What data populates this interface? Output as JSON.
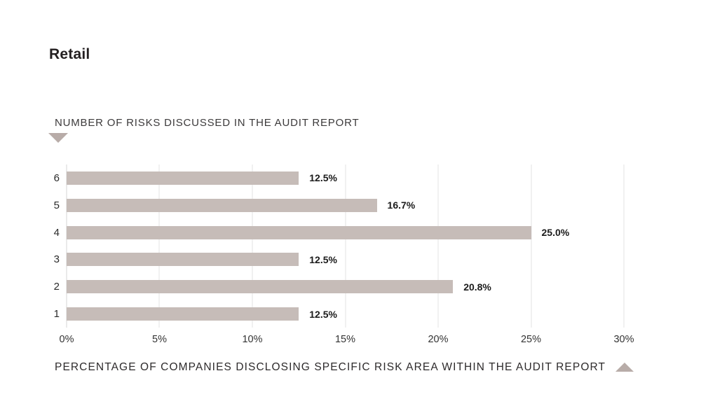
{
  "page": {
    "title": "Retail"
  },
  "chart_data": {
    "type": "bar",
    "orientation": "horizontal",
    "title": "Retail",
    "y_axis_title": "NUMBER OF RISKS DISCUSSED IN THE AUDIT REPORT",
    "x_axis_title": "PERCENTAGE OF COMPANIES DISCLOSING SPECIFIC RISK AREA WITHIN THE AUDIT REPORT",
    "categories": [
      "6",
      "5",
      "4",
      "3",
      "2",
      "1"
    ],
    "values": [
      12.5,
      16.7,
      25.0,
      12.5,
      20.8,
      12.5
    ],
    "value_labels": [
      "12.5%",
      "16.7%",
      "25.0%",
      "12.5%",
      "20.8%",
      "12.5%"
    ],
    "x_ticks": [
      "0%",
      "5%",
      "10%",
      "15%",
      "20%",
      "25%",
      "30%"
    ],
    "x_min": 0,
    "x_max": 30,
    "grid": "vertical",
    "legend": "none",
    "colors": {
      "bar": "#c6bcb8",
      "triangle": "#b8aca8",
      "gridline": "#e3e3e3",
      "zero_line": "#d5d5d5",
      "value_label": "#1b1b1b",
      "axis_text": "#333333"
    }
  }
}
